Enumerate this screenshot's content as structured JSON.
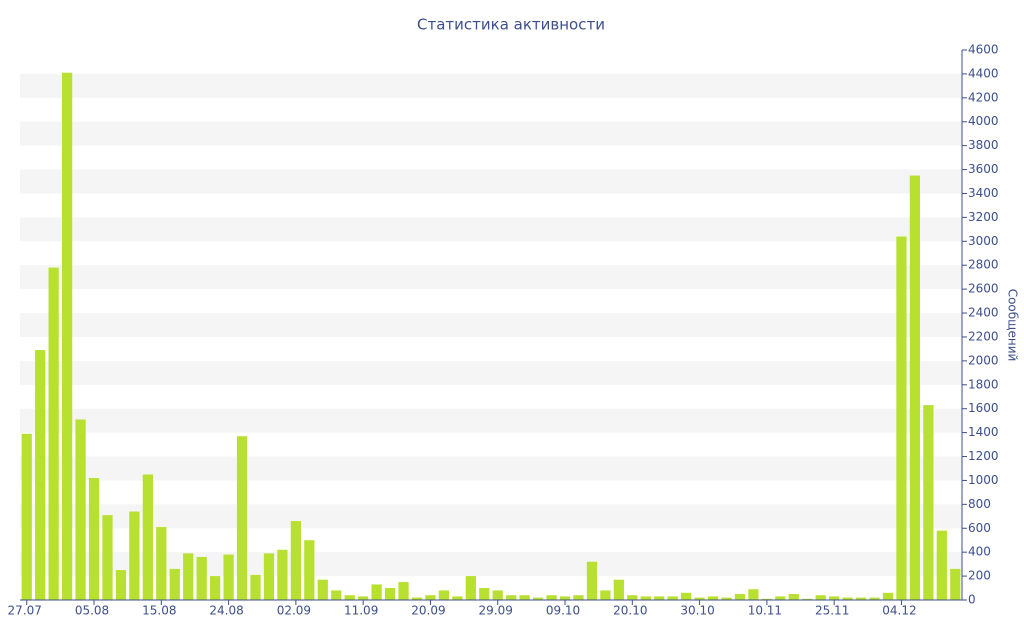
{
  "chart_data": {
    "type": "bar",
    "title": "Статистика активности",
    "y_label": "Сообщений",
    "categories": [
      "27.07",
      null,
      null,
      null,
      null,
      "05.08",
      null,
      null,
      null,
      null,
      "15.08",
      null,
      null,
      null,
      null,
      "24.08",
      null,
      null,
      null,
      null,
      "02.09",
      null,
      null,
      null,
      null,
      "11.09",
      null,
      null,
      null,
      null,
      "20.09",
      null,
      null,
      null,
      null,
      "29.09",
      null,
      null,
      null,
      null,
      "09.10",
      null,
      null,
      null,
      null,
      "20.10",
      null,
      null,
      null,
      null,
      "30.10",
      null,
      null,
      null,
      null,
      "10.11",
      null,
      null,
      null,
      null,
      "25.11",
      null,
      null,
      null,
      null,
      "04.12",
      null,
      null,
      null,
      null
    ],
    "values": [
      1390,
      2090,
      2780,
      4410,
      1510,
      1020,
      710,
      250,
      740,
      1050,
      610,
      260,
      390,
      360,
      200,
      380,
      1370,
      210,
      390,
      420,
      660,
      500,
      170,
      80,
      40,
      30,
      130,
      100,
      150,
      20,
      40,
      80,
      30,
      200,
      100,
      80,
      40,
      40,
      20,
      40,
      30,
      40,
      320,
      80,
      170,
      40,
      30,
      30,
      30,
      60,
      20,
      30,
      20,
      50,
      90,
      10,
      30,
      50,
      10,
      40,
      30,
      20,
      20,
      20,
      60,
      3040,
      3550,
      1630,
      580,
      260
    ],
    "color": "#b7e030",
    "ylim": [
      0,
      4600
    ],
    "yticks": [
      0,
      200,
      400,
      600,
      800,
      1000,
      1200,
      1400,
      1600,
      1800,
      2000,
      2200,
      2400,
      2600,
      2800,
      3000,
      3200,
      3400,
      3600,
      3800,
      4000,
      4200,
      4400,
      4600
    ],
    "y_axis_side": "right",
    "grid": "bands"
  }
}
